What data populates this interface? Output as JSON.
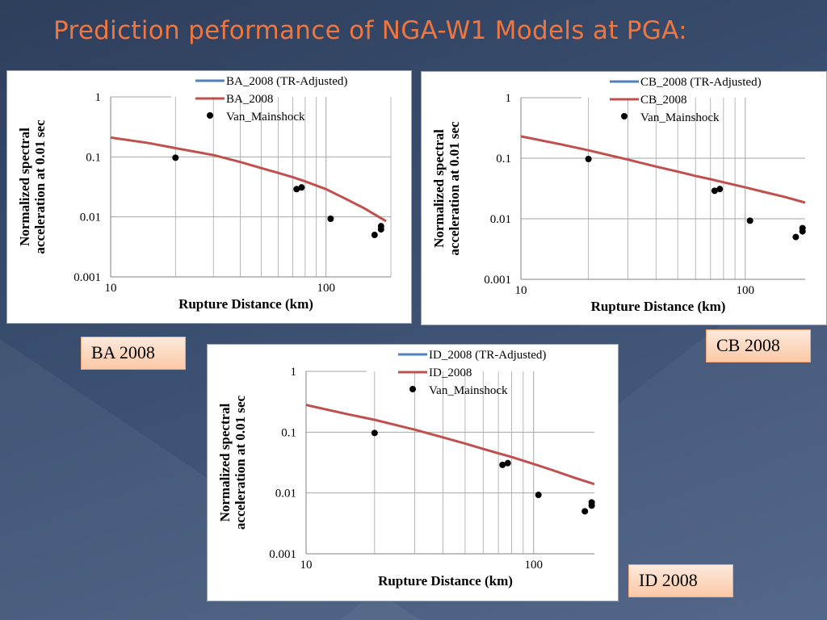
{
  "slide": {
    "title": "Prediction peformance of NGA-W1 Models at PGA:",
    "colors": {
      "title": "#f0763f",
      "model_adjusted": "#4f81bd",
      "model": "#c0504d",
      "observed": "#000000"
    }
  },
  "tags": [
    "BA 2008",
    "CB 2008",
    "ID 2008"
  ],
  "chart_data": [
    {
      "type": "line",
      "xlabel": "Rupture Distance (km)",
      "ylabel": "Normalized spectral acceleration at 0.01 sec",
      "ylabel_lines": [
        "Normalized spectral",
        "acceleration at 0.01 sec"
      ],
      "x_scale": "log",
      "y_scale": "log",
      "xlim": [
        10,
        200
      ],
      "ylim": [
        0.001,
        1
      ],
      "x_ticks": [
        "10",
        "100"
      ],
      "y_ticks": [
        "0.001",
        "0.01",
        "0.1",
        "1"
      ],
      "grid": true,
      "legend_position": "top-right",
      "legend": [
        "BA_2008 (TR-Adjusted)",
        "BA_2008",
        "Van_Mainshock"
      ],
      "series": [
        {
          "name": "BA_2008 (TR-Adjusted)",
          "kind": "line",
          "x": [],
          "y": []
        },
        {
          "name": "BA_2008",
          "kind": "line",
          "x": [
            10,
            15,
            20,
            30,
            40,
            50,
            60,
            70,
            80,
            100,
            120,
            150,
            180,
            190
          ],
          "y": [
            0.21,
            0.17,
            0.14,
            0.107,
            0.082,
            0.065,
            0.054,
            0.046,
            0.039,
            0.029,
            0.021,
            0.014,
            0.0095,
            0.0085
          ]
        },
        {
          "name": "Van_Mainshock",
          "kind": "scatter",
          "x": [
            20,
            73,
            77,
            105,
            168,
            180,
            180
          ],
          "y": [
            0.097,
            0.029,
            0.031,
            0.0093,
            0.005,
            0.0062,
            0.007
          ]
        }
      ]
    },
    {
      "type": "line",
      "xlabel": "Rupture Distance (km)",
      "ylabel": "Normalized spectral acceleration at 0.01 sec",
      "ylabel_lines": [
        "Normalized spectral",
        "acceleration at 0.01 sec"
      ],
      "x_scale": "log",
      "y_scale": "log",
      "xlim": [
        10,
        185
      ],
      "ylim": [
        0.001,
        1
      ],
      "x_ticks": [
        "10",
        "100"
      ],
      "y_ticks": [
        "0.001",
        "0.01",
        "0.1",
        "1"
      ],
      "grid": true,
      "legend_position": "top-right",
      "legend": [
        "CB_2008 (TR-Adjusted)",
        "CB_2008",
        "Van_Mainshock"
      ],
      "series": [
        {
          "name": "CB_2008 (TR-Adjusted)",
          "kind": "line",
          "x": [],
          "y": []
        },
        {
          "name": "CB_2008",
          "kind": "line",
          "x": [
            10,
            15,
            20,
            30,
            40,
            50,
            60,
            70,
            80,
            100,
            120,
            150,
            185
          ],
          "y": [
            0.23,
            0.17,
            0.135,
            0.095,
            0.073,
            0.06,
            0.051,
            0.045,
            0.04,
            0.033,
            0.028,
            0.023,
            0.0185
          ]
        },
        {
          "name": "Van_Mainshock",
          "kind": "scatter",
          "x": [
            20,
            73,
            77,
            105,
            168,
            180,
            180
          ],
          "y": [
            0.097,
            0.029,
            0.031,
            0.0093,
            0.005,
            0.0062,
            0.007
          ]
        }
      ]
    },
    {
      "type": "line",
      "xlabel": "Rupture Distance (km)",
      "ylabel": "Normalized spectral acceleration at 0.01 sec",
      "ylabel_lines": [
        "Normalized spectral",
        "acceleration at 0.01 sec"
      ],
      "x_scale": "log",
      "y_scale": "log",
      "xlim": [
        10,
        185
      ],
      "ylim": [
        0.001,
        1
      ],
      "x_ticks": [
        "10",
        "100"
      ],
      "y_ticks": [
        "0.001",
        "0.01",
        "0.1",
        "1"
      ],
      "grid": true,
      "legend_position": "top-right",
      "legend": [
        "ID_2008 (TR-Adjusted)",
        "ID_2008",
        "Van_Mainshock"
      ],
      "series": [
        {
          "name": "ID_2008 (TR-Adjusted)",
          "kind": "line",
          "x": [],
          "y": []
        },
        {
          "name": "ID_2008",
          "kind": "line",
          "x": [
            10,
            15,
            20,
            30,
            40,
            50,
            60,
            70,
            80,
            100,
            120,
            150,
            185
          ],
          "y": [
            0.28,
            0.2,
            0.16,
            0.11,
            0.082,
            0.065,
            0.053,
            0.045,
            0.039,
            0.03,
            0.024,
            0.018,
            0.014
          ]
        },
        {
          "name": "Van_Mainshock",
          "kind": "scatter",
          "x": [
            20,
            73,
            77,
            105,
            168,
            180,
            180
          ],
          "y": [
            0.097,
            0.029,
            0.031,
            0.0093,
            0.005,
            0.0062,
            0.007
          ]
        }
      ]
    }
  ]
}
